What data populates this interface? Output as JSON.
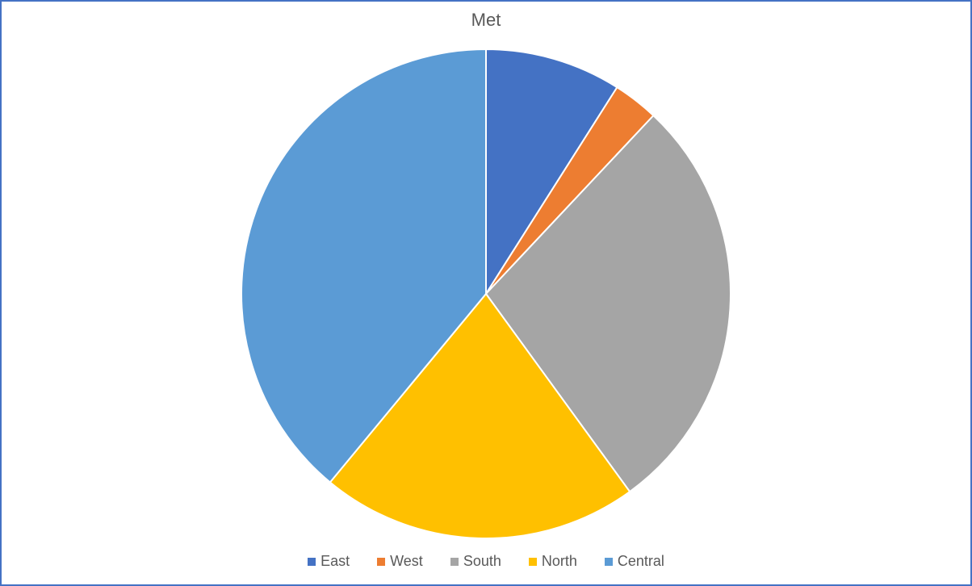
{
  "chart": {
    "type": "pie",
    "title": "Met",
    "title_fontsize": 22,
    "title_color": "#595959",
    "border_color": "#4472c4",
    "border_width": 2,
    "background_color": "#ffffff",
    "radius": 303,
    "slice_border_color": "#ffffff",
    "slice_border_width": 2,
    "start_angle_deg": -90,
    "series": [
      {
        "label": "East",
        "value": 9,
        "color": "#4472c4"
      },
      {
        "label": "West",
        "value": 3,
        "color": "#ed7d31"
      },
      {
        "label": "South",
        "value": 28,
        "color": "#a5a5a5"
      },
      {
        "label": "North",
        "value": 21,
        "color": "#ffc000"
      },
      {
        "label": "Central",
        "value": 39,
        "color": "#5b9bd5"
      }
    ],
    "legend": {
      "position": "bottom",
      "fontsize": 18,
      "text_color": "#595959",
      "swatch_size": 10,
      "gap": 34
    }
  }
}
